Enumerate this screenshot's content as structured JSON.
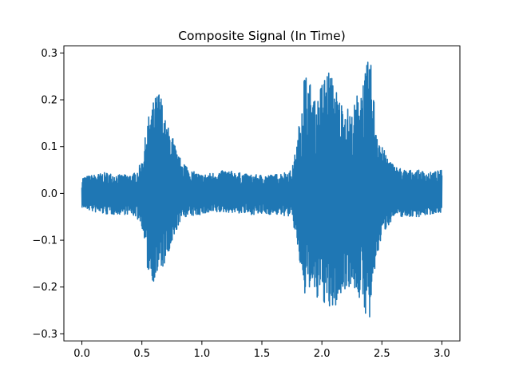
{
  "chart_data": {
    "type": "line",
    "title": "Composite Signal (In Time)",
    "xlabel": "",
    "ylabel": "",
    "xlim": [
      -0.15,
      3.15
    ],
    "ylim": [
      -0.315,
      0.315
    ],
    "x_ticks": [
      0.0,
      0.5,
      1.0,
      1.5,
      2.0,
      2.5,
      3.0
    ],
    "x_tick_labels": [
      "0.0",
      "0.5",
      "1.0",
      "1.5",
      "2.0",
      "2.5",
      "3.0"
    ],
    "y_ticks": [
      -0.3,
      -0.2,
      -0.1,
      0.0,
      0.1,
      0.2,
      0.3
    ],
    "y_tick_labels": [
      "−0.3",
      "−0.2",
      "−0.1",
      "0.0",
      "0.1",
      "0.2",
      "0.3"
    ],
    "grid": false,
    "legend": "none",
    "color": "#1f77b4",
    "series": [
      {
        "x": [
          0.0,
          0.1,
          0.2,
          0.3,
          0.4,
          0.45,
          0.5,
          0.55,
          0.6,
          0.65,
          0.7,
          0.75,
          0.8,
          0.85,
          0.9,
          1.0,
          1.2,
          1.4,
          1.6,
          1.75,
          1.8,
          1.85,
          1.9,
          1.95,
          2.0,
          2.05,
          2.1,
          2.15,
          2.2,
          2.25,
          2.3,
          2.35,
          2.4,
          2.45,
          2.5,
          2.55,
          2.6,
          2.7,
          2.8,
          2.9,
          3.0
        ],
        "upper": [
          0.035,
          0.04,
          0.045,
          0.04,
          0.04,
          0.045,
          0.07,
          0.16,
          0.2,
          0.225,
          0.15,
          0.13,
          0.08,
          0.07,
          0.05,
          0.04,
          0.05,
          0.04,
          0.04,
          0.05,
          0.12,
          0.265,
          0.24,
          0.19,
          0.24,
          0.27,
          0.24,
          0.2,
          0.19,
          0.17,
          0.22,
          0.25,
          0.3,
          0.16,
          0.1,
          0.08,
          0.06,
          0.05,
          0.05,
          0.045,
          0.05
        ],
        "lower": [
          -0.03,
          -0.04,
          -0.045,
          -0.045,
          -0.045,
          -0.05,
          -0.07,
          -0.17,
          -0.19,
          -0.17,
          -0.15,
          -0.12,
          -0.07,
          -0.05,
          -0.05,
          -0.045,
          -0.04,
          -0.045,
          -0.045,
          -0.05,
          -0.12,
          -0.23,
          -0.2,
          -0.24,
          -0.22,
          -0.26,
          -0.25,
          -0.23,
          -0.2,
          -0.2,
          -0.22,
          -0.25,
          -0.28,
          -0.15,
          -0.09,
          -0.07,
          -0.05,
          -0.05,
          -0.05,
          -0.045,
          -0.04
        ]
      }
    ]
  }
}
